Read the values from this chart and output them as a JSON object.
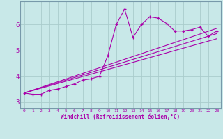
{
  "bg_color": "#c8e8e8",
  "line_color": "#aa00aa",
  "grid_color": "#aacccc",
  "spine_color": "#7799aa",
  "xlabel": "Windchill (Refroidissement éolien,°C)",
  "xlim": [
    -0.5,
    23.5
  ],
  "ylim": [
    2.75,
    6.9
  ],
  "xticks": [
    0,
    1,
    2,
    3,
    4,
    5,
    6,
    7,
    8,
    9,
    10,
    11,
    12,
    13,
    14,
    15,
    16,
    17,
    18,
    19,
    20,
    21,
    22,
    23
  ],
  "yticks": [
    3,
    4,
    5,
    6
  ],
  "main_x": [
    0,
    1,
    2,
    3,
    4,
    5,
    6,
    7,
    8,
    9,
    10,
    11,
    12,
    13,
    14,
    15,
    16,
    17,
    18,
    19,
    20,
    21,
    22,
    23
  ],
  "main_y": [
    3.35,
    3.3,
    3.3,
    3.45,
    3.5,
    3.6,
    3.7,
    3.85,
    3.9,
    4.0,
    4.8,
    6.0,
    6.6,
    5.5,
    6.0,
    6.3,
    6.25,
    6.05,
    5.75,
    5.75,
    5.8,
    5.9,
    5.55,
    5.75
  ],
  "trend1_x": [
    0,
    23
  ],
  "trend1_y": [
    3.35,
    5.85
  ],
  "trend2_x": [
    0,
    23
  ],
  "trend2_y": [
    3.35,
    5.65
  ],
  "trend3_x": [
    0,
    23
  ],
  "trend3_y": [
    3.35,
    5.45
  ]
}
